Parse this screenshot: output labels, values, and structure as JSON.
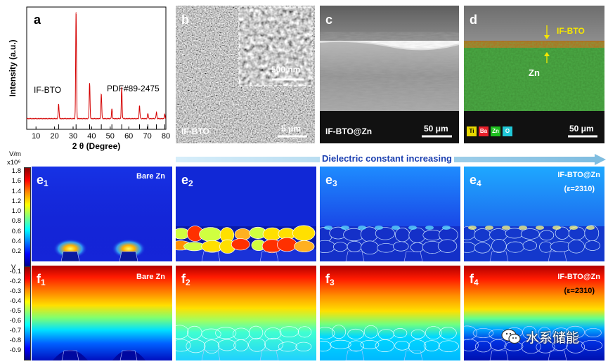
{
  "panels": {
    "a": {
      "label": "a"
    },
    "b": {
      "label": "b",
      "tag": "IF-BTO",
      "scale": "5 μm",
      "inset_scale": "500 nm"
    },
    "c": {
      "label": "c",
      "tag": "IF-BTO@Zn",
      "scale": "50 μm"
    },
    "d": {
      "label": "d",
      "tag_top": "IF-BTO",
      "tag_zn": "Zn",
      "scale": "50 μm",
      "legend": [
        {
          "sym": "Ti",
          "color": "#e8d800"
        },
        {
          "sym": "Ba",
          "color": "#e8202a"
        },
        {
          "sym": "Zn",
          "color": "#1fbf1f"
        },
        {
          "sym": "O",
          "color": "#20c8d8"
        }
      ]
    },
    "e1": {
      "label_main": "e",
      "label_sub": "1",
      "title": "Bare Zn"
    },
    "e2": {
      "label_main": "e",
      "label_sub": "2"
    },
    "e3": {
      "label_main": "e",
      "label_sub": "3"
    },
    "e4": {
      "label_main": "e",
      "label_sub": "4",
      "title": "IF-BTO@Zn",
      "subtitle": "(ε=2310)"
    },
    "f1": {
      "label_main": "f",
      "label_sub": "1",
      "title": "Bare Zn"
    },
    "f2": {
      "label_main": "f",
      "label_sub": "2"
    },
    "f3": {
      "label_main": "f",
      "label_sub": "3"
    },
    "f4": {
      "label_main": "f",
      "label_sub": "4",
      "title": "IF-BTO@Zn",
      "subtitle": "(ε=2310)"
    }
  },
  "arrow_text": "Dielectric constant increasing",
  "colorbar_e": {
    "unit_line1": "V/m",
    "unit_line2": "x10⁶",
    "ticks": [
      "1.8",
      "1.6",
      "1.4",
      "1.2",
      "1.0",
      "0.8",
      "0.6",
      "0.4",
      "0.2"
    ]
  },
  "colorbar_f": {
    "unit": "V",
    "ticks": [
      "-0.1",
      "-0.2",
      "-0.3",
      "-0.4",
      "-0.5",
      "-0.6",
      "-0.7",
      "-0.8",
      "-0.9"
    ]
  },
  "watermark": "水系储能",
  "colors": {
    "accent_arrow": "#9ecfe8",
    "dielectric_text": "#1a3fb0",
    "yellow_tag": "#f5e600"
  },
  "chart_data": {
    "type": "line",
    "title": "",
    "xlabel": "2 θ (Degree)",
    "ylabel": "Intensity (a.u.)",
    "xlim": [
      5,
      80
    ],
    "x_ticks": [
      "10",
      "20",
      "30",
      "40",
      "50",
      "60",
      "70",
      "80"
    ],
    "series": [
      {
        "name": "IF-BTO",
        "color": "#d40000",
        "peaks": [
          {
            "x": 22.2,
            "y": 14
          },
          {
            "x": 31.6,
            "y": 100
          },
          {
            "x": 38.9,
            "y": 33
          },
          {
            "x": 45.2,
            "y": 23
          },
          {
            "x": 50.9,
            "y": 9
          },
          {
            "x": 56.2,
            "y": 29
          },
          {
            "x": 65.8,
            "y": 12
          },
          {
            "x": 70.3,
            "y": 5
          },
          {
            "x": 74.9,
            "y": 6
          },
          {
            "x": 79.4,
            "y": 4
          }
        ]
      }
    ],
    "reference": {
      "name": "PDF#89-2475",
      "positions": [
        22.2,
        31.6,
        38.9,
        45.2,
        50.9,
        56.2,
        65.8,
        70.3,
        74.9,
        79.4
      ]
    },
    "annotations": [
      "IF-BTO",
      "PDF#89-2475"
    ]
  }
}
